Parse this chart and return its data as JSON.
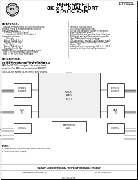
{
  "title_left": "HIGH-SPEED\n8K x 9  DUAL-PORT\nSTATIC RAM",
  "part_number": "IDT7015L",
  "company": "Integrated Device Technology, Inc.",
  "features_title": "FEATURES:",
  "features": [
    "True Dual-Ported memory cells which allow simultaneous access of the same memory location",
    "High-speed access",
    "  — Military: 35/25/20ns (max.)",
    "  — Commercial: 35/25/17/15/12/10ns (max.)",
    "Low power operation",
    "  — All Inputs:",
    "      Active: 750mW (typ.)",
    "      Standby: 5mW (typ.)",
    "  — TTL Inputs:",
    "      Active: 750mW (typ.)",
    "      Standby: 10mW (typ.)",
    "SEMAPHORE easily separates data bus access to 1 Port or more using the Master/Slave option when executing read/write commands",
    "  MEB = H for BUSY output flag on Master",
    "  MEB = L for BUSY input from Slave"
  ],
  "features_right": [
    "Interrupt and Busy Flags",
    "On-chip port arbitration logic",
    "Full on-chip hardware support of semaphore signaling between ports",
    "Fully asynchronous operation from either port",
    "Both ports are capable of enhancing greater than 256K+ destination discharge",
    "TTL-compatible, single 5V ± 10% power supply",
    "Available in selected 68-pin PLCC, 84-pin PLCC, and 44-pin SOIC",
    "Industrial temperature range (-40°C to +85°C) available, tested to military electrical specifications"
  ],
  "description_title": "DESCRIPTION:",
  "description": "The IDT7015 is a high-speed 8K x 9 Dual-Port Static RAM. The IDT7015 is designed to be used as stand-alone Dual-Port RAM or as a combination RAM/FIFO/9-bit Dual-Port RAM for 16-bit or more word systems. Being fully...",
  "diagram_title": "FUNCTIONAL BLOCK DIAGRAM",
  "bg_color": "#ffffff",
  "border_color": "#000000",
  "header_bg": "#ffffff",
  "text_color": "#000000",
  "footer_text": "MILITARY AND COMMERCIAL TEMPERATURE RANGE PRODUCT",
  "notes_title": "NOTES:",
  "notes": [
    "1. In SEMAPHORE, BUSY is an output and is a push-pull driver.",
    "2. In sync mode, BUSY is input.",
    "3. BUSY outputs of 68P outputs are open-collector/open-drain drivers."
  ]
}
